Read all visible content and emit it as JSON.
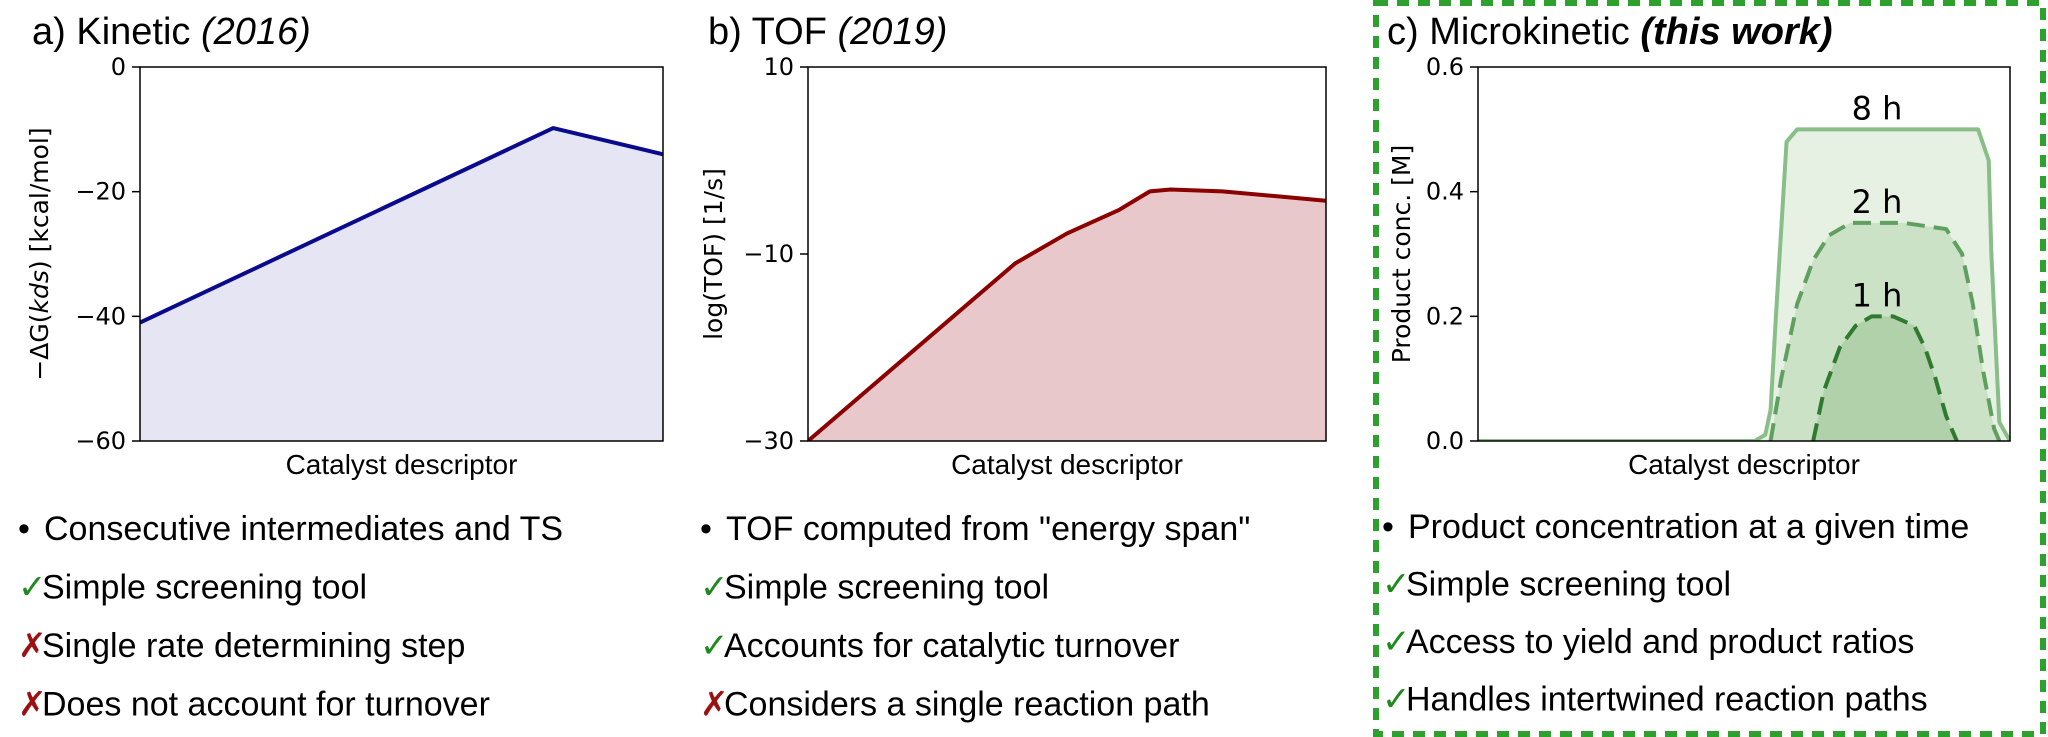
{
  "panels": [
    {
      "title_prefix": "a) Kinetic ",
      "title_year": "(2016)",
      "bullets": [
        {
          "marker": "•",
          "kind": "dot",
          "text": "Consecutive intermediates and TS"
        },
        {
          "marker": "✓",
          "kind": "ok",
          "text": "Simple screening tool"
        },
        {
          "marker": "✗",
          "kind": "no",
          "text": "Single rate determining step"
        },
        {
          "marker": "✗",
          "kind": "no",
          "text": "Does not account for turnover"
        }
      ]
    },
    {
      "title_prefix": "b) TOF ",
      "title_year": "(2019)",
      "bullets": [
        {
          "marker": "•",
          "kind": "dot",
          "text": "TOF computed from \"energy span\""
        },
        {
          "marker": "✓",
          "kind": "ok",
          "text": "Simple screening tool"
        },
        {
          "marker": "✓",
          "kind": "ok",
          "text": "Accounts for catalytic turnover"
        },
        {
          "marker": "✗",
          "kind": "no",
          "text": "Considers a single reaction path"
        }
      ]
    },
    {
      "title_prefix": "c) Microkinetic ",
      "title_year": "(this work)",
      "bullets": [
        {
          "marker": "•",
          "kind": "dot",
          "text": "Product concentration at a given time"
        },
        {
          "marker": "✓",
          "kind": "ok",
          "text": "Simple screening tool"
        },
        {
          "marker": "✓",
          "kind": "ok",
          "text": "Access to yield and product ratios"
        },
        {
          "marker": "✓",
          "kind": "ok",
          "text": "Handles intertwined reaction paths"
        }
      ]
    }
  ],
  "chart_data": [
    {
      "type": "area",
      "xlabel": "Catalyst descriptor",
      "ylabel_prefix": "−ΔG(",
      "ylabel_italic": "kds",
      "ylabel_suffix": ") [kcal/mol]",
      "ylim": [
        -60,
        0
      ],
      "yticks": [
        0,
        -20,
        -40,
        -60
      ],
      "ytick_labels": [
        "0",
        "−20",
        "−40",
        "−60"
      ],
      "xlim": [
        0,
        1
      ],
      "grid": false,
      "line_color": "#0a0a8c",
      "fill_color": "#e5e5f4",
      "series": [
        {
          "x": [
            0,
            0.79,
            1.0
          ],
          "y": [
            -41,
            -9.8,
            -14
          ]
        }
      ]
    },
    {
      "type": "area",
      "xlabel": "Catalyst descriptor",
      "ylabel": "log(TOF) [1/s]",
      "ylim": [
        -30,
        10
      ],
      "yticks": [
        10,
        -10,
        -30
      ],
      "ytick_labels": [
        "10",
        "−10",
        "−30"
      ],
      "xlim": [
        0,
        1
      ],
      "grid": false,
      "line_color": "#8b0000",
      "fill_color": "#e8c8ca",
      "series": [
        {
          "x": [
            0,
            0.2,
            0.4,
            0.5,
            0.6,
            0.66,
            0.7,
            0.8,
            0.9,
            1.0
          ],
          "y": [
            -30,
            -20.5,
            -11,
            -7.8,
            -5.3,
            -3.3,
            -3.1,
            -3.3,
            -3.8,
            -4.3
          ]
        }
      ]
    },
    {
      "type": "area",
      "xlabel": "Catalyst descriptor",
      "ylabel": "Product conc. [M]",
      "ylim": [
        0,
        0.6
      ],
      "yticks": [
        0.0,
        0.2,
        0.4,
        0.6
      ],
      "ytick_labels": [
        "0.0",
        "0.2",
        "0.4",
        "0.6"
      ],
      "xlim": [
        0,
        1
      ],
      "grid": false,
      "series": [
        {
          "name": "8 h",
          "style": "solid",
          "line_color": "#89be89",
          "fill_color": "#e6f1e3",
          "x": [
            0,
            0.5,
            0.52,
            0.54,
            0.55,
            0.56,
            0.58,
            0.6,
            0.8,
            0.94,
            0.96,
            0.965,
            0.98,
            1.0,
            1.06
          ],
          "y": [
            0,
            0,
            0.0,
            0.01,
            0.05,
            0.2,
            0.48,
            0.5,
            0.5,
            0.5,
            0.45,
            0.3,
            0.03,
            0.0,
            0
          ]
        },
        {
          "name": "2 h",
          "style": "dash",
          "line_color": "#5f9f5f",
          "fill_color": "#cbe2c6",
          "x": [
            0.55,
            0.57,
            0.6,
            0.63,
            0.66,
            0.7,
            0.8,
            0.88,
            0.91,
            0.93,
            0.95,
            0.97,
            0.98
          ],
          "y": [
            0.0,
            0.1,
            0.22,
            0.29,
            0.33,
            0.35,
            0.35,
            0.34,
            0.3,
            0.22,
            0.11,
            0.02,
            0.0
          ]
        },
        {
          "name": "1 h",
          "style": "dash",
          "line_color": "#2f7a2f",
          "fill_color": "#b0d1aa",
          "x": [
            0.63,
            0.65,
            0.68,
            0.71,
            0.74,
            0.78,
            0.82,
            0.84,
            0.86,
            0.88,
            0.9
          ],
          "y": [
            0.0,
            0.08,
            0.15,
            0.185,
            0.2,
            0.2,
            0.185,
            0.15,
            0.1,
            0.04,
            0.0
          ]
        }
      ],
      "curve_labels": [
        {
          "text": "8 h",
          "x": 0.75,
          "y": 0.5
        },
        {
          "text": "2 h",
          "x": 0.75,
          "y": 0.35
        },
        {
          "text": "1 h",
          "x": 0.75,
          "y": 0.2
        }
      ],
      "highlight_border_color": "#2ea02e"
    }
  ]
}
